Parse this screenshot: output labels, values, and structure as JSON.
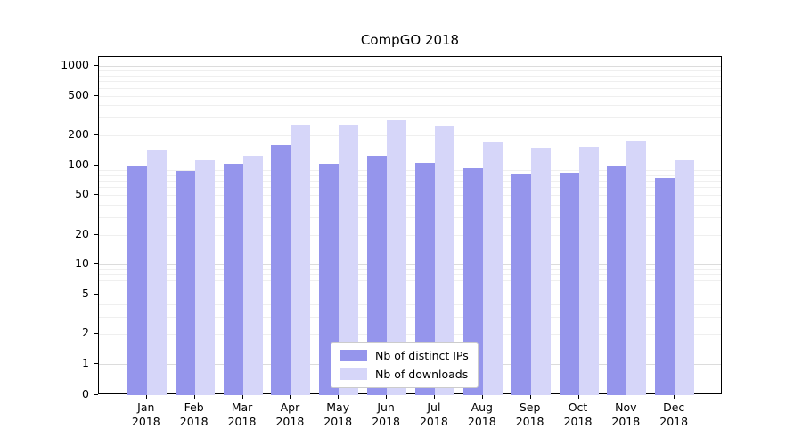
{
  "chart_data": {
    "type": "bar",
    "title": "CompGO 2018",
    "categories": [
      "Jan",
      "Feb",
      "Mar",
      "Apr",
      "May",
      "Jun",
      "Jul",
      "Aug",
      "Sep",
      "Oct",
      "Nov",
      "Dec"
    ],
    "year": "2018",
    "series": [
      {
        "name": "Nb of distinct IPs",
        "color": "#9595ec",
        "values": [
          100,
          88,
          103,
          160,
          103,
          125,
          105,
          93,
          82,
          85,
          100,
          74
        ]
      },
      {
        "name": "Nb of downloads",
        "color": "#d6d6f9",
        "values": [
          140,
          112,
          125,
          250,
          255,
          285,
          245,
          175,
          150,
          152,
          178,
          112
        ]
      }
    ],
    "yscale": "symlog",
    "yticks": [
      0,
      1,
      2,
      5,
      10,
      20,
      50,
      100,
      200,
      500,
      1000
    ],
    "ylim": [
      0,
      1400
    ],
    "xlabel": "",
    "ylabel": "",
    "grid": true,
    "legend_position": "lower center"
  },
  "colors": {
    "axis": "#000000",
    "major_grid": "#dcdcdc",
    "minor_grid": "#efefef",
    "legend_border": "#cccccc",
    "background": "#ffffff"
  }
}
